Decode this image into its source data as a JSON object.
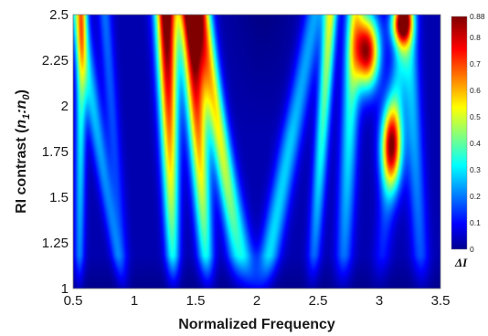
{
  "chart_data": {
    "type": "heatmap",
    "xlabel": "Normalized Frequency",
    "ylabel_main": "RI contrast (",
    "ylabel_n1": "n",
    "ylabel_sub1": "1",
    "ylabel_colon": ":",
    "ylabel_n0": "n",
    "ylabel_sub0": "0",
    "ylabel_close": ")",
    "xlim": [
      0.5,
      3.5
    ],
    "ylim": [
      1,
      2.5
    ],
    "x_ticks": [
      "0.5",
      "1",
      "1.5",
      "2",
      "2.5",
      "3",
      "3.5"
    ],
    "x_tick_values": [
      0.5,
      1,
      1.5,
      2,
      2.5,
      3,
      3.5
    ],
    "y_ticks": [
      "1",
      "1.25",
      "1.5",
      "1.75",
      "2",
      "2.25",
      "2.5"
    ],
    "y_tick_values": [
      1,
      1.25,
      1.5,
      1.75,
      2,
      2.25,
      2.5
    ],
    "colorbar": {
      "min": 0,
      "max": 0.88,
      "ticks": [
        "0",
        "0.1",
        "0.2",
        "0.3",
        "0.4",
        "0.5",
        "0.6",
        "0.7",
        "0.8",
        "0.88"
      ],
      "tick_values": [
        0,
        0.1,
        0.2,
        0.3,
        0.4,
        0.5,
        0.6,
        0.7,
        0.8,
        0.88
      ],
      "label": "ΔI",
      "colormap": "jet"
    },
    "grid": false
  }
}
